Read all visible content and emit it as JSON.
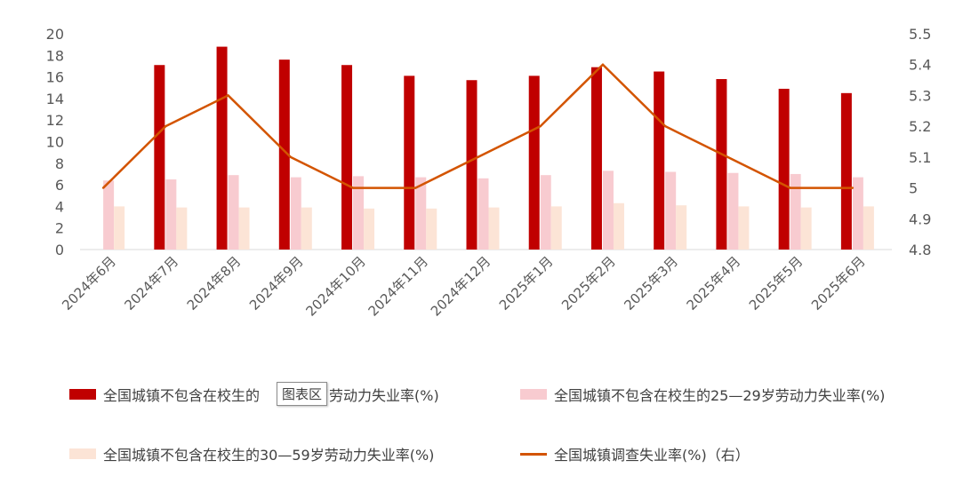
{
  "chart_data": {
    "type": "bar",
    "categories": [
      "2024年6月",
      "2024年7月",
      "2024年8月",
      "2024年9月",
      "2024年10月",
      "2024年11月",
      "2024年12月",
      "2025年1月",
      "2025年2月",
      "2025年3月",
      "2025年4月",
      "2025年5月",
      "2025年6月"
    ],
    "series": [
      {
        "name": "全国城镇不包含在校生的16—24岁劳动力失业率(%)",
        "type": "bar",
        "axis": "left",
        "color": "#C00000",
        "values": [
          null,
          17.1,
          18.8,
          17.6,
          17.1,
          16.1,
          15.7,
          16.1,
          16.9,
          16.5,
          15.8,
          14.9,
          14.5
        ]
      },
      {
        "name": "全国城镇不包含在校生的25—29岁劳动力失业率(%)",
        "type": "bar",
        "axis": "left",
        "color": "#F8CBD0",
        "values": [
          6.4,
          6.5,
          6.9,
          6.7,
          6.8,
          6.7,
          6.6,
          6.9,
          7.3,
          7.2,
          7.1,
          7.0,
          6.7
        ]
      },
      {
        "name": "全国城镇不包含在校生的30—59岁劳动力失业率(%)",
        "type": "bar",
        "axis": "left",
        "color": "#FCE4D6",
        "values": [
          4.0,
          3.9,
          3.9,
          3.9,
          3.8,
          3.8,
          3.9,
          4.0,
          4.3,
          4.1,
          4.0,
          3.9,
          4.0
        ]
      },
      {
        "name": "全国城镇调查失业率(%)（右）",
        "type": "line",
        "axis": "right",
        "color": "#D35400",
        "values": [
          5.0,
          5.2,
          5.3,
          5.1,
          5.0,
          5.0,
          5.1,
          5.2,
          5.4,
          5.2,
          5.1,
          5.0,
          5.0
        ]
      }
    ],
    "y_left": {
      "min": 0,
      "max": 20,
      "ticks": [
        0,
        2,
        4,
        6,
        8,
        10,
        12,
        14,
        16,
        18,
        20
      ]
    },
    "y_right": {
      "min": 4.8,
      "max": 5.5,
      "ticks": [
        "4.8",
        "4.9",
        "5",
        "5.1",
        "5.2",
        "5.3",
        "5.4",
        "5.5"
      ]
    },
    "grid": false,
    "legend_position": "bottom",
    "legend_labels": [
      "全国城镇不包含在校生的",
      "岁劳动力失业率(%)",
      "全国城镇不包含在校生的25—29岁劳动力失业率(%)",
      "全国城镇不包含在校生的30—59岁劳动力失业率(%)",
      "全国城镇调查失业率(%)（右）"
    ]
  },
  "tooltip": {
    "text": "图表区"
  }
}
